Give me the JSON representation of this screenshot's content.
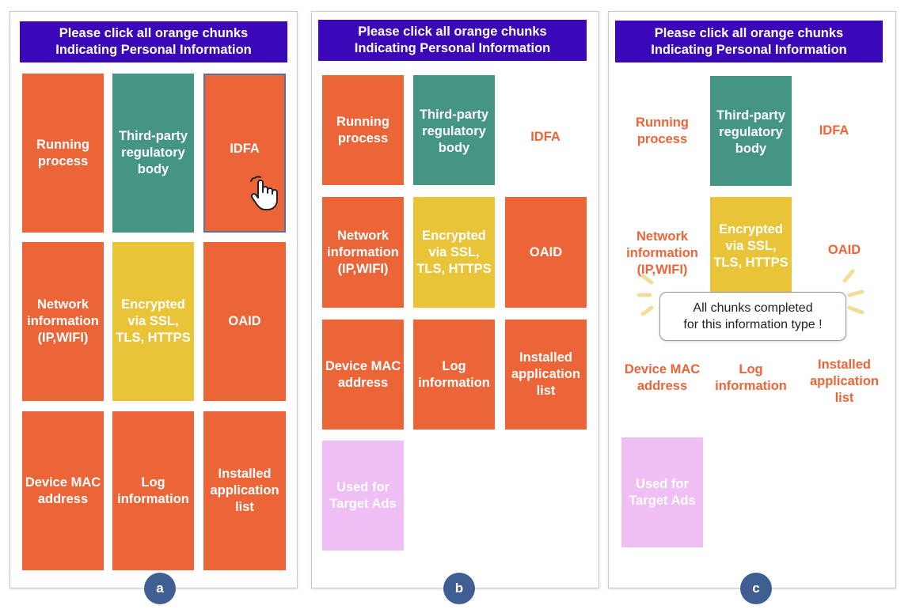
{
  "header": {
    "line1": "Please click all orange chunks",
    "line2": "Indicating Personal Information"
  },
  "chunks": {
    "running_process": "Running process",
    "third_party": "Third-party regulatory body",
    "idfa": "IDFA",
    "network_info": "Network information (IP,WIFI)",
    "encrypted": "Encrypted via SSL, TLS, HTTPS",
    "oaid": "OAID",
    "device_mac": "Device MAC address",
    "log_info": "Log information",
    "installed_apps": "Installed application list",
    "target_ads": "Used for Target Ads"
  },
  "toast": {
    "line1": "All chunks completed",
    "line2": "for this information type !"
  },
  "panel_labels": {
    "a": "a",
    "b": "b",
    "c": "c"
  },
  "colors": {
    "header_bg": "#3a08b8",
    "orange": "#eb6538",
    "teal": "#459585",
    "yellow": "#e9c438",
    "pink": "#efbef5",
    "label_circle": "#3f5f93",
    "burst": "#f2dc9a"
  },
  "icons": {
    "cursor": "hand-pointer-icon"
  }
}
